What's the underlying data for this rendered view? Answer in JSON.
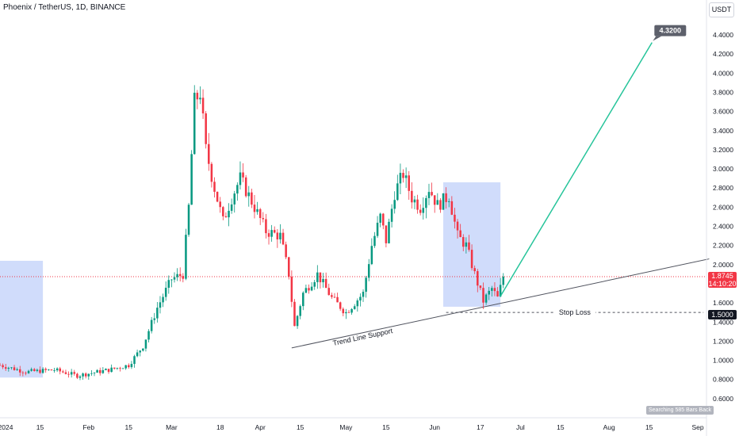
{
  "header": {
    "title": "Phoenix / TetherUS, 1D, BINANCE",
    "currency": "USDT"
  },
  "price_tag": {
    "price": "1.8745",
    "countdown": "14:10:20",
    "color": "#f23645"
  },
  "stop_loss_tag": {
    "price": "1.5000",
    "color": "#131722"
  },
  "status_badge": "Searching 585 Bars Back",
  "annotations": {
    "trend_line_label": "Trend Line Support",
    "stop_loss_label": "Stop Loss",
    "target_label": "4.3200"
  },
  "chart_data": {
    "type": "candlestick",
    "title": "Phoenix / TetherUS, 1D, BINANCE",
    "currency": "USDT",
    "ylim": [
      0.55,
      4.62
    ],
    "y_ticks": [
      "4.4000",
      "4.2000",
      "4.0000",
      "3.8000",
      "3.6000",
      "3.4000",
      "3.2000",
      "3.0000",
      "2.8000",
      "2.6000",
      "2.4000",
      "2.2000",
      "2.0000",
      "1.8000",
      "1.6000",
      "1.4000",
      "1.2000",
      "1.0000",
      "0.8000",
      "0.6000"
    ],
    "x_tick_labels": [
      {
        "label": "2024",
        "date": "2024-01-01"
      },
      {
        "label": "15",
        "date": "2024-01-15"
      },
      {
        "label": "Feb",
        "date": "2024-02-01"
      },
      {
        "label": "15",
        "date": "2024-02-15"
      },
      {
        "label": "Mar",
        "date": "2024-03-01"
      },
      {
        "label": "18",
        "date": "2024-03-18"
      },
      {
        "label": "Apr",
        "date": "2024-04-01"
      },
      {
        "label": "15",
        "date": "2024-04-15"
      },
      {
        "label": "May",
        "date": "2024-05-01"
      },
      {
        "label": "15",
        "date": "2024-05-15"
      },
      {
        "label": "Jun",
        "date": "2024-06-01"
      },
      {
        "label": "17",
        "date": "2024-06-17"
      },
      {
        "label": "Jul",
        "date": "2024-07-01"
      },
      {
        "label": "15",
        "date": "2024-07-15"
      },
      {
        "label": "Aug",
        "date": "2024-08-01"
      },
      {
        "label": "15",
        "date": "2024-08-15"
      },
      {
        "label": "Sep",
        "date": "2024-09-01"
      }
    ],
    "x_range": [
      "2024-01-01",
      "2024-09-01"
    ],
    "up_color": "#089981",
    "down_color": "#f23645",
    "anchors": [
      {
        "date": "2024-01-01",
        "price": 0.95
      },
      {
        "date": "2024-01-10",
        "price": 0.88
      },
      {
        "date": "2024-01-20",
        "price": 0.9
      },
      {
        "date": "2024-01-28",
        "price": 0.84
      },
      {
        "date": "2024-02-08",
        "price": 0.9
      },
      {
        "date": "2024-02-15",
        "price": 0.95
      },
      {
        "date": "2024-02-20",
        "price": 1.15
      },
      {
        "date": "2024-02-25",
        "price": 1.55
      },
      {
        "date": "2024-03-01",
        "price": 1.85
      },
      {
        "date": "2024-03-05",
        "price": 1.9
      },
      {
        "date": "2024-03-07",
        "price": 2.6
      },
      {
        "date": "2024-03-09",
        "price": 3.7
      },
      {
        "date": "2024-03-11",
        "price": 3.8
      },
      {
        "date": "2024-03-13",
        "price": 3.2
      },
      {
        "date": "2024-03-16",
        "price": 2.8
      },
      {
        "date": "2024-03-19",
        "price": 2.45
      },
      {
        "date": "2024-03-22",
        "price": 2.7
      },
      {
        "date": "2024-03-25",
        "price": 2.9
      },
      {
        "date": "2024-03-30",
        "price": 2.6
      },
      {
        "date": "2024-04-03",
        "price": 2.35
      },
      {
        "date": "2024-04-08",
        "price": 2.3
      },
      {
        "date": "2024-04-11",
        "price": 1.9
      },
      {
        "date": "2024-04-13",
        "price": 1.35
      },
      {
        "date": "2024-04-16",
        "price": 1.7
      },
      {
        "date": "2024-04-21",
        "price": 1.9
      },
      {
        "date": "2024-04-26",
        "price": 1.65
      },
      {
        "date": "2024-05-01",
        "price": 1.5
      },
      {
        "date": "2024-05-07",
        "price": 1.7
      },
      {
        "date": "2024-05-10",
        "price": 2.2
      },
      {
        "date": "2024-05-13",
        "price": 2.5
      },
      {
        "date": "2024-05-15",
        "price": 2.25
      },
      {
        "date": "2024-05-18",
        "price": 2.75
      },
      {
        "date": "2024-05-21",
        "price": 2.95
      },
      {
        "date": "2024-05-24",
        "price": 2.7
      },
      {
        "date": "2024-05-27",
        "price": 2.6
      },
      {
        "date": "2024-05-30",
        "price": 2.8
      },
      {
        "date": "2024-06-02",
        "price": 2.62
      },
      {
        "date": "2024-06-06",
        "price": 2.72
      },
      {
        "date": "2024-06-09",
        "price": 2.3
      },
      {
        "date": "2024-06-12",
        "price": 2.2
      },
      {
        "date": "2024-06-15",
        "price": 1.9
      },
      {
        "date": "2024-06-18",
        "price": 1.62
      },
      {
        "date": "2024-06-21",
        "price": 1.75
      },
      {
        "date": "2024-06-23",
        "price": 1.65
      },
      {
        "date": "2024-06-25",
        "price": 1.87
      }
    ],
    "last_price": 1.8745,
    "current_price_line": 1.8745,
    "highlight_boxes": [
      {
        "from": "2023-12-31",
        "to": "2024-01-16",
        "low": 0.82,
        "high": 2.04,
        "color": "#c8d6fa"
      },
      {
        "from": "2024-06-04",
        "to": "2024-06-24",
        "low": 1.56,
        "high": 2.86,
        "color": "#c8d6fa"
      }
    ],
    "trend_line": {
      "from": {
        "date": "2024-04-12",
        "price": 1.13
      },
      "to": {
        "date": "2024-09-05",
        "price": 2.06
      },
      "label": "Trend Line Support"
    },
    "stop_loss": {
      "from": {
        "date": "2024-06-05",
        "price": 1.5
      },
      "to": {
        "date": "2024-09-03",
        "price": 1.5
      },
      "price": 1.5,
      "label": "Stop Loss"
    },
    "target_path": {
      "from": {
        "date": "2024-06-24",
        "price": 1.67
      },
      "to": {
        "date": "2024-08-16",
        "price": 4.32
      },
      "price": 4.32,
      "color": "#26c49a"
    }
  }
}
